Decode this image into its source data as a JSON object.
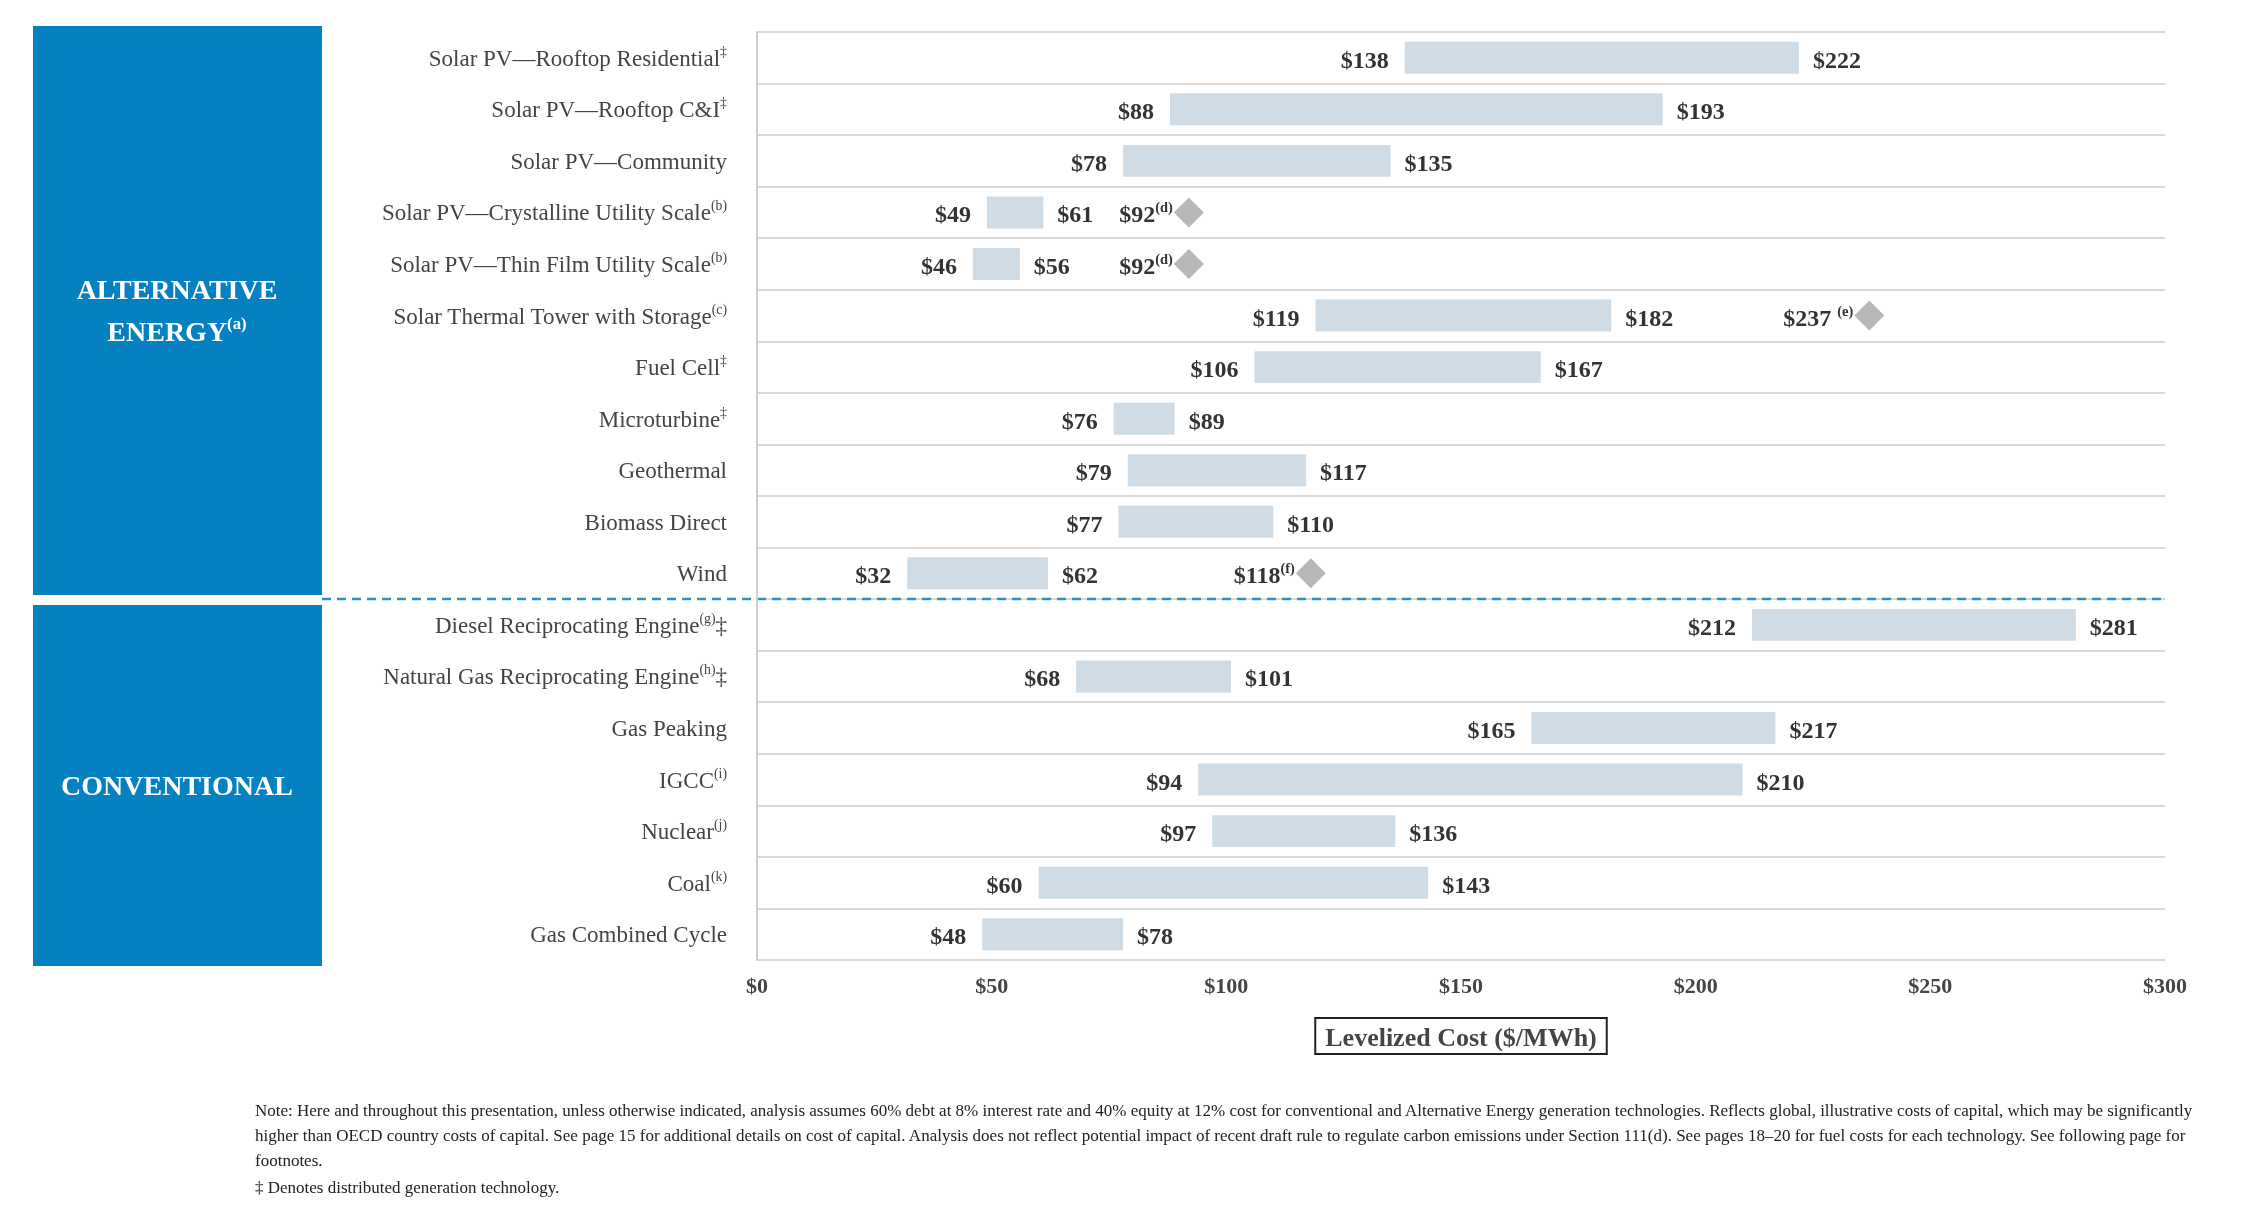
{
  "chart_data": {
    "type": "bar",
    "orientation": "horizontal",
    "xlabel": "Levelized Cost ($/MWh)",
    "categories": [
      "Solar PV—Rooftop Residential$^{‡}$",
      "Solar PV—Rooftop C&I$^{‡}$",
      "Solar PV—Community",
      "Solar PV—Crystalline Utility Scale$^{(b)}$",
      "Solar PV—Thin Film Utility Scale$^{(b)}$",
      "Solar Thermal Tower with Storage$^{(c)}$",
      "Fuel Cell$^{‡}$",
      "Microturbine$^{‡}$",
      "Geothermal",
      "Biomass Direct",
      "Wind",
      "Diesel Reciprocating Engine$^{(g)}$‡",
      "Natural Gas Reciprocating Engine$^{(h)}$‡",
      "Gas Peaking",
      "IGCC$^{(i)}$",
      "Nuclear$^{(j)}$",
      "Coal$^{(k)}$",
      "Gas Combined Cycle"
    ],
    "series": [
      {
        "type": "bar",
        "color": "#cfdce6",
        "base": [
          138,
          88,
          78,
          49,
          46,
          119,
          106,
          76,
          79,
          77,
          32,
          212,
          68,
          165,
          94,
          97,
          60,
          48
        ],
        "values": [
          84,
          105,
          57,
          12,
          10,
          63,
          61,
          13,
          38,
          33,
          30,
          69,
          33,
          52,
          116,
          39,
          83,
          30
        ]
      },
      {
        "type": "scatter",
        "color": "#a6a6a6",
        "marker": "diamond",
        "x": [
          "Solar PV—Crystalline Utility Scale$^{(b)}$",
          "Solar PV—Thin Film Utility Scale$^{(b)}$",
          "Solar Thermal Tower with Storage$^{(c)}$",
          "Wind"
        ],
        "values": [
          92,
          92,
          237,
          118
        ]
      }
    ],
    "xlim": [
      0,
      300
    ],
    "xticks": [
      {
        "value": 0,
        "label": "$0"
      },
      {
        "value": 50,
        "label": "$50"
      },
      {
        "value": 100,
        "label": "$100"
      },
      {
        "value": 150,
        "label": "$150"
      },
      {
        "value": 200,
        "label": "$200"
      },
      {
        "value": 250,
        "label": "$250"
      },
      {
        "value": 300,
        "label": "$300"
      }
    ],
    "grid": "y",
    "ref_lines": [
      {
        "axis": "y",
        "value": "Diesel Reciprocating Engine$^{(g)}$‡",
        "color": "#2b8fc8",
        "line_style": "dashed"
      }
    ],
    "annotations": [
      "ALTERNATIVE ENERGY$^{(a)}$",
      "CONVENTIONAL",
      {
        "text": "$138",
        "x": 138,
        "y": "Solar PV—Rooftop Residential$^{‡}$"
      },
      {
        "text": "$222",
        "x": 222,
        "y": "Solar PV—Rooftop Residential$^{‡}$"
      },
      {
        "text": "$88",
        "x": 88,
        "y": "Solar PV—Rooftop C&I$^{‡}$"
      },
      {
        "text": "$193",
        "x": 193,
        "y": "Solar PV—Rooftop C&I$^{‡}$"
      },
      {
        "text": "$78",
        "x": 78,
        "y": "Solar PV—Community"
      },
      {
        "text": "$135",
        "x": 135,
        "y": "Solar PV—Community"
      },
      {
        "text": "$49",
        "x": 49,
        "y": "Solar PV—Crystalline Utility Scale$^{(b)}$"
      },
      {
        "text": "$61",
        "x": 61,
        "y": "Solar PV—Crystalline Utility Scale$^{(b)}$"
      },
      {
        "text": "$92$^{(d)}$",
        "x": 92,
        "y": "Solar PV—Crystalline Utility Scale$^{(b)}$"
      },
      {
        "text": "$46",
        "x": 46,
        "y": "Solar PV—Thin Film Utility Scale$^{(b)}$"
      },
      {
        "text": "$56",
        "x": 56,
        "y": "Solar PV—Thin Film Utility Scale$^{(b)}$"
      },
      {
        "text": "$92$^{(d)}$",
        "x": 92,
        "y": "Solar PV—Thin Film Utility Scale$^{(b)}$"
      },
      {
        "text": "$119",
        "x": 119,
        "y": "Solar Thermal Tower with Storage$^{(c)}$"
      },
      {
        "text": "$182",
        "x": 182,
        "y": "Solar Thermal Tower with Storage$^{(c)}$"
      },
      {
        "text": "$237 $^{(e)}$",
        "x": 237,
        "y": "Solar Thermal Tower with Storage$^{(c)}$"
      },
      {
        "text": "$106",
        "x": 106,
        "y": "Fuel Cell$^{‡}$"
      },
      {
        "text": "$167",
        "x": 167,
        "y": "Fuel Cell$^{‡}$"
      },
      {
        "text": "$76",
        "x": 76,
        "y": "Microturbine$^{‡}$"
      },
      {
        "text": "$89",
        "x": 89,
        "y": "Microturbine$^{‡}$"
      },
      {
        "text": "$79",
        "x": 79,
        "y": "Geothermal"
      },
      {
        "text": "$117",
        "x": 117,
        "y": "Geothermal"
      },
      {
        "text": "$77",
        "x": 77,
        "y": "Biomass Direct"
      },
      {
        "text": "$110",
        "x": 110,
        "y": "Biomass Direct"
      },
      {
        "text": "$32",
        "x": 32,
        "y": "Wind"
      },
      {
        "text": "$62",
        "x": 62,
        "y": "Wind"
      },
      {
        "text": "$118$^{(f)}$",
        "x": 118,
        "y": "Wind"
      },
      {
        "text": "$212",
        "x": 212,
        "y": "Diesel Reciprocating Engine$^{(g)}$‡"
      },
      {
        "text": "$281",
        "x": 281,
        "y": "Diesel Reciprocating Engine$^{(g)}$‡"
      },
      {
        "text": "$68",
        "x": 68,
        "y": "Natural Gas Reciprocating Engine$^{(h)}$‡"
      },
      {
        "text": "$101",
        "x": 101,
        "y": "Natural Gas Reciprocating Engine$^{(h)}$‡"
      },
      {
        "text": "$165",
        "x": 165,
        "y": "Gas Peaking"
      },
      {
        "text": "$217",
        "x": 217,
        "y": "Gas Peaking"
      },
      {
        "text": "$94",
        "x": 94,
        "y": "IGCC$^{(i)}$"
      },
      {
        "text": "$210",
        "x": 210,
        "y": "IGCC$^{(i)}$"
      },
      {
        "text": "$97",
        "x": 97,
        "y": "Nuclear$^{(j)}$"
      },
      {
        "text": "$136",
        "x": 136,
        "y": "Nuclear$^{(j)}$"
      },
      {
        "text": "$60",
        "x": 60,
        "y": "Coal$^{(k)}$"
      },
      {
        "text": "$143",
        "x": 143,
        "y": "Coal$^{(k)}$"
      },
      {
        "text": "$48",
        "x": 48,
        "y": "Gas Combined Cycle"
      },
      {
        "text": "$78",
        "x": 78,
        "y": "Gas Combined Cycle"
      },
      "Note: Here and throughout this presentation, unless otherwise indicated, analysis assumes 60% debt at 8% interest rate and 40% equity at 12% cost for conventional and Alternative Energy generation technologies. Reflects global, illustrative costs of capital, which may be significantly higher than OECD country costs of capital. See page 15 for additional details on cost of capital. Analysis does not reflect potential impact of recent draft rule to regulate carbon emissions under Section 111(d). See pages 18–20 for fuel costs for each technology. See following page for footnotes.",
      "‡ Denotes distributed generation technology."
    ]
  }
}
